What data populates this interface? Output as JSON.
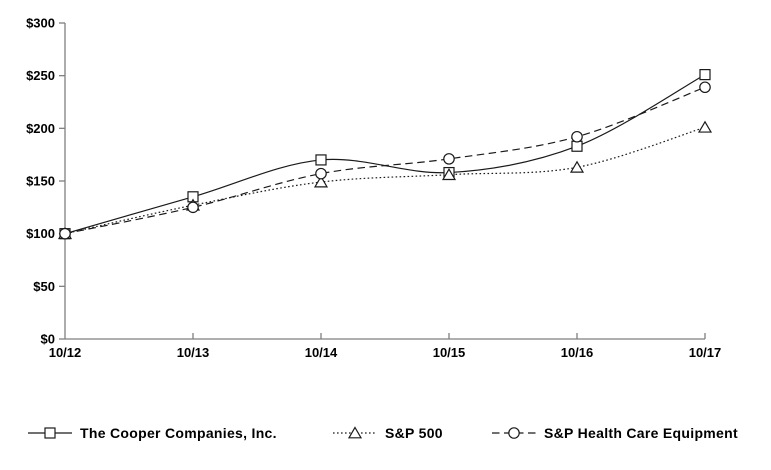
{
  "chart_data": {
    "type": "line",
    "title": "",
    "xlabel": "",
    "ylabel": "",
    "categories": [
      "10/12",
      "10/13",
      "10/14",
      "10/15",
      "10/16",
      "10/17"
    ],
    "y_ticks": [
      "$0",
      "$50",
      "$100",
      "$150",
      "$200",
      "$250",
      "$300"
    ],
    "y_tick_values": [
      0,
      50,
      100,
      150,
      200,
      250,
      300
    ],
    "ylim": [
      0,
      300
    ],
    "grid": false,
    "legend_position": "bottom",
    "series": [
      {
        "name": "The Cooper Companies, Inc.",
        "marker": "square",
        "line_style": "solid",
        "values": [
          100,
          135,
          170,
          158,
          183,
          251
        ]
      },
      {
        "name": "S&P 500",
        "marker": "triangle",
        "line_style": "dotted",
        "values": [
          100,
          127,
          149,
          156,
          163,
          201
        ]
      },
      {
        "name": "S&P Health Care Equipment",
        "marker": "circle",
        "line_style": "dashed",
        "values": [
          100,
          125,
          157,
          171,
          192,
          239
        ]
      }
    ],
    "colors": {
      "line": "#1a1a1a",
      "axis": "#7f7f7f",
      "text": "#000000",
      "background": "#ffffff"
    }
  }
}
